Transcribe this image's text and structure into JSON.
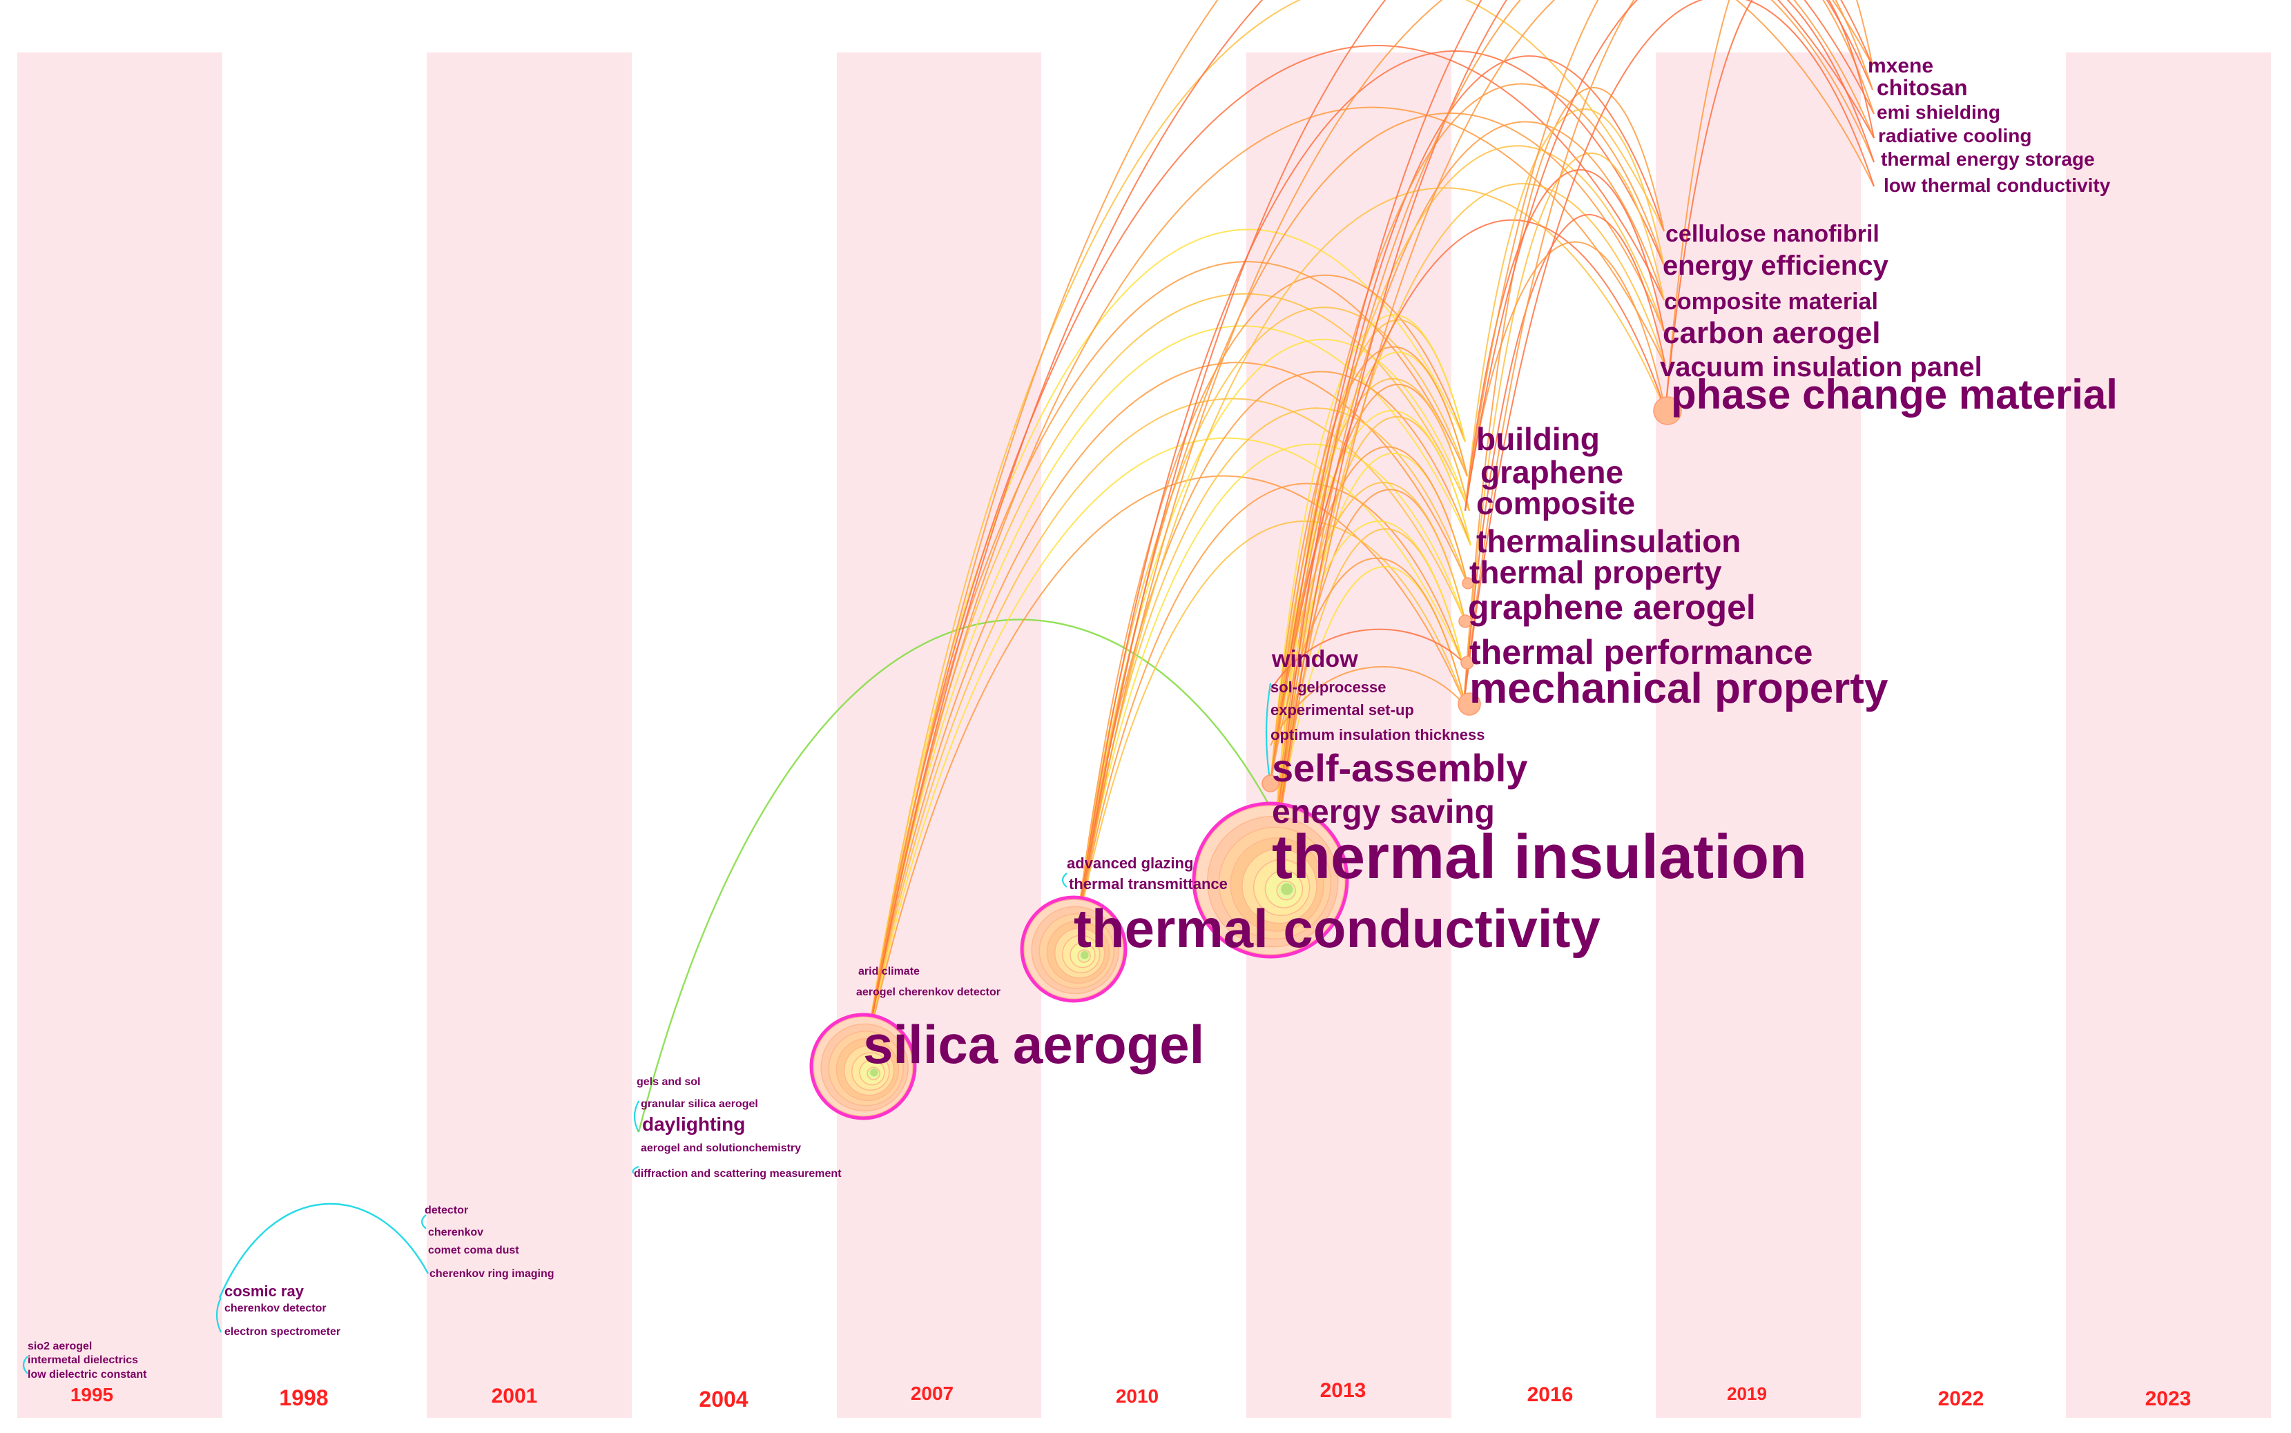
{
  "timeline": {
    "years": [
      "1995",
      "1998",
      "2001",
      "2004",
      "2007",
      "2010",
      "2013",
      "2016",
      "2019",
      "2022",
      "2023"
    ],
    "band_colors": [
      "#fde6ea",
      "#ffffff"
    ]
  },
  "colors": {
    "keyword_text": "#7a0063",
    "year_text": "#ff2020",
    "node_ring": "#ff33cc",
    "link_colors": [
      "#00d4e0",
      "#7fdc3c",
      "#ffe040",
      "#ffc040",
      "#ff9a40",
      "#ff7040"
    ]
  },
  "keywords": [
    {
      "label": "sio2 aerogel",
      "year": "1995"
    },
    {
      "label": "intermetal dielectrics",
      "year": "1995"
    },
    {
      "label": "low dielectric constant",
      "year": "1995"
    },
    {
      "label": "cosmic ray",
      "year": "1998"
    },
    {
      "label": "cherenkov detector",
      "year": "1998"
    },
    {
      "label": "electron spectrometer",
      "year": "1998"
    },
    {
      "label": "detector",
      "year": "2001"
    },
    {
      "label": "cherenkov",
      "year": "2001"
    },
    {
      "label": "comet coma dust",
      "year": "2001"
    },
    {
      "label": "cherenkov ring imaging",
      "year": "2001"
    },
    {
      "label": "gels and sol",
      "year": "2004"
    },
    {
      "label": "granular silica aerogel",
      "year": "2004"
    },
    {
      "label": "daylighting",
      "year": "2004"
    },
    {
      "label": "aerogel and solutionchemistry",
      "year": "2004"
    },
    {
      "label": "diffraction and scattering measurement",
      "year": "2004"
    },
    {
      "label": "silica aerogel",
      "year": "2007"
    },
    {
      "label": "arid climate",
      "year": "2007"
    },
    {
      "label": "aerogel cherenkov detector",
      "year": "2007"
    },
    {
      "label": "thermal conductivity",
      "year": "2010"
    },
    {
      "label": "advanced glazing",
      "year": "2010"
    },
    {
      "label": "thermal transmittance",
      "year": "2010"
    },
    {
      "label": "thermal insulation",
      "year": "2013"
    },
    {
      "label": "energy saving",
      "year": "2013"
    },
    {
      "label": "self-assembly",
      "year": "2013"
    },
    {
      "label": "optimum insulation thickness",
      "year": "2013"
    },
    {
      "label": "experimental set-up",
      "year": "2013"
    },
    {
      "label": "sol-gelprocesse",
      "year": "2013"
    },
    {
      "label": "window",
      "year": "2013"
    },
    {
      "label": "building",
      "year": "2016"
    },
    {
      "label": "graphene",
      "year": "2016"
    },
    {
      "label": "composite",
      "year": "2016"
    },
    {
      "label": "thermalinsulation",
      "year": "2016"
    },
    {
      "label": "thermal property",
      "year": "2016"
    },
    {
      "label": "graphene aerogel",
      "year": "2016"
    },
    {
      "label": "thermal performance",
      "year": "2016"
    },
    {
      "label": "mechanical property",
      "year": "2016"
    },
    {
      "label": "cellulose nanofibril",
      "year": "2019"
    },
    {
      "label": "energy efficiency",
      "year": "2019"
    },
    {
      "label": "composite material",
      "year": "2019"
    },
    {
      "label": "carbon aerogel",
      "year": "2019"
    },
    {
      "label": "vacuum insulation panel",
      "year": "2019"
    },
    {
      "label": "phase change material",
      "year": "2019"
    },
    {
      "label": "mxene",
      "year": "2022"
    },
    {
      "label": "chitosan",
      "year": "2022"
    },
    {
      "label": "emi shielding",
      "year": "2022"
    },
    {
      "label": "radiative cooling",
      "year": "2022"
    },
    {
      "label": "thermal energy storage",
      "year": "2022"
    },
    {
      "label": "low thermal conductivity",
      "year": "2022"
    }
  ]
}
